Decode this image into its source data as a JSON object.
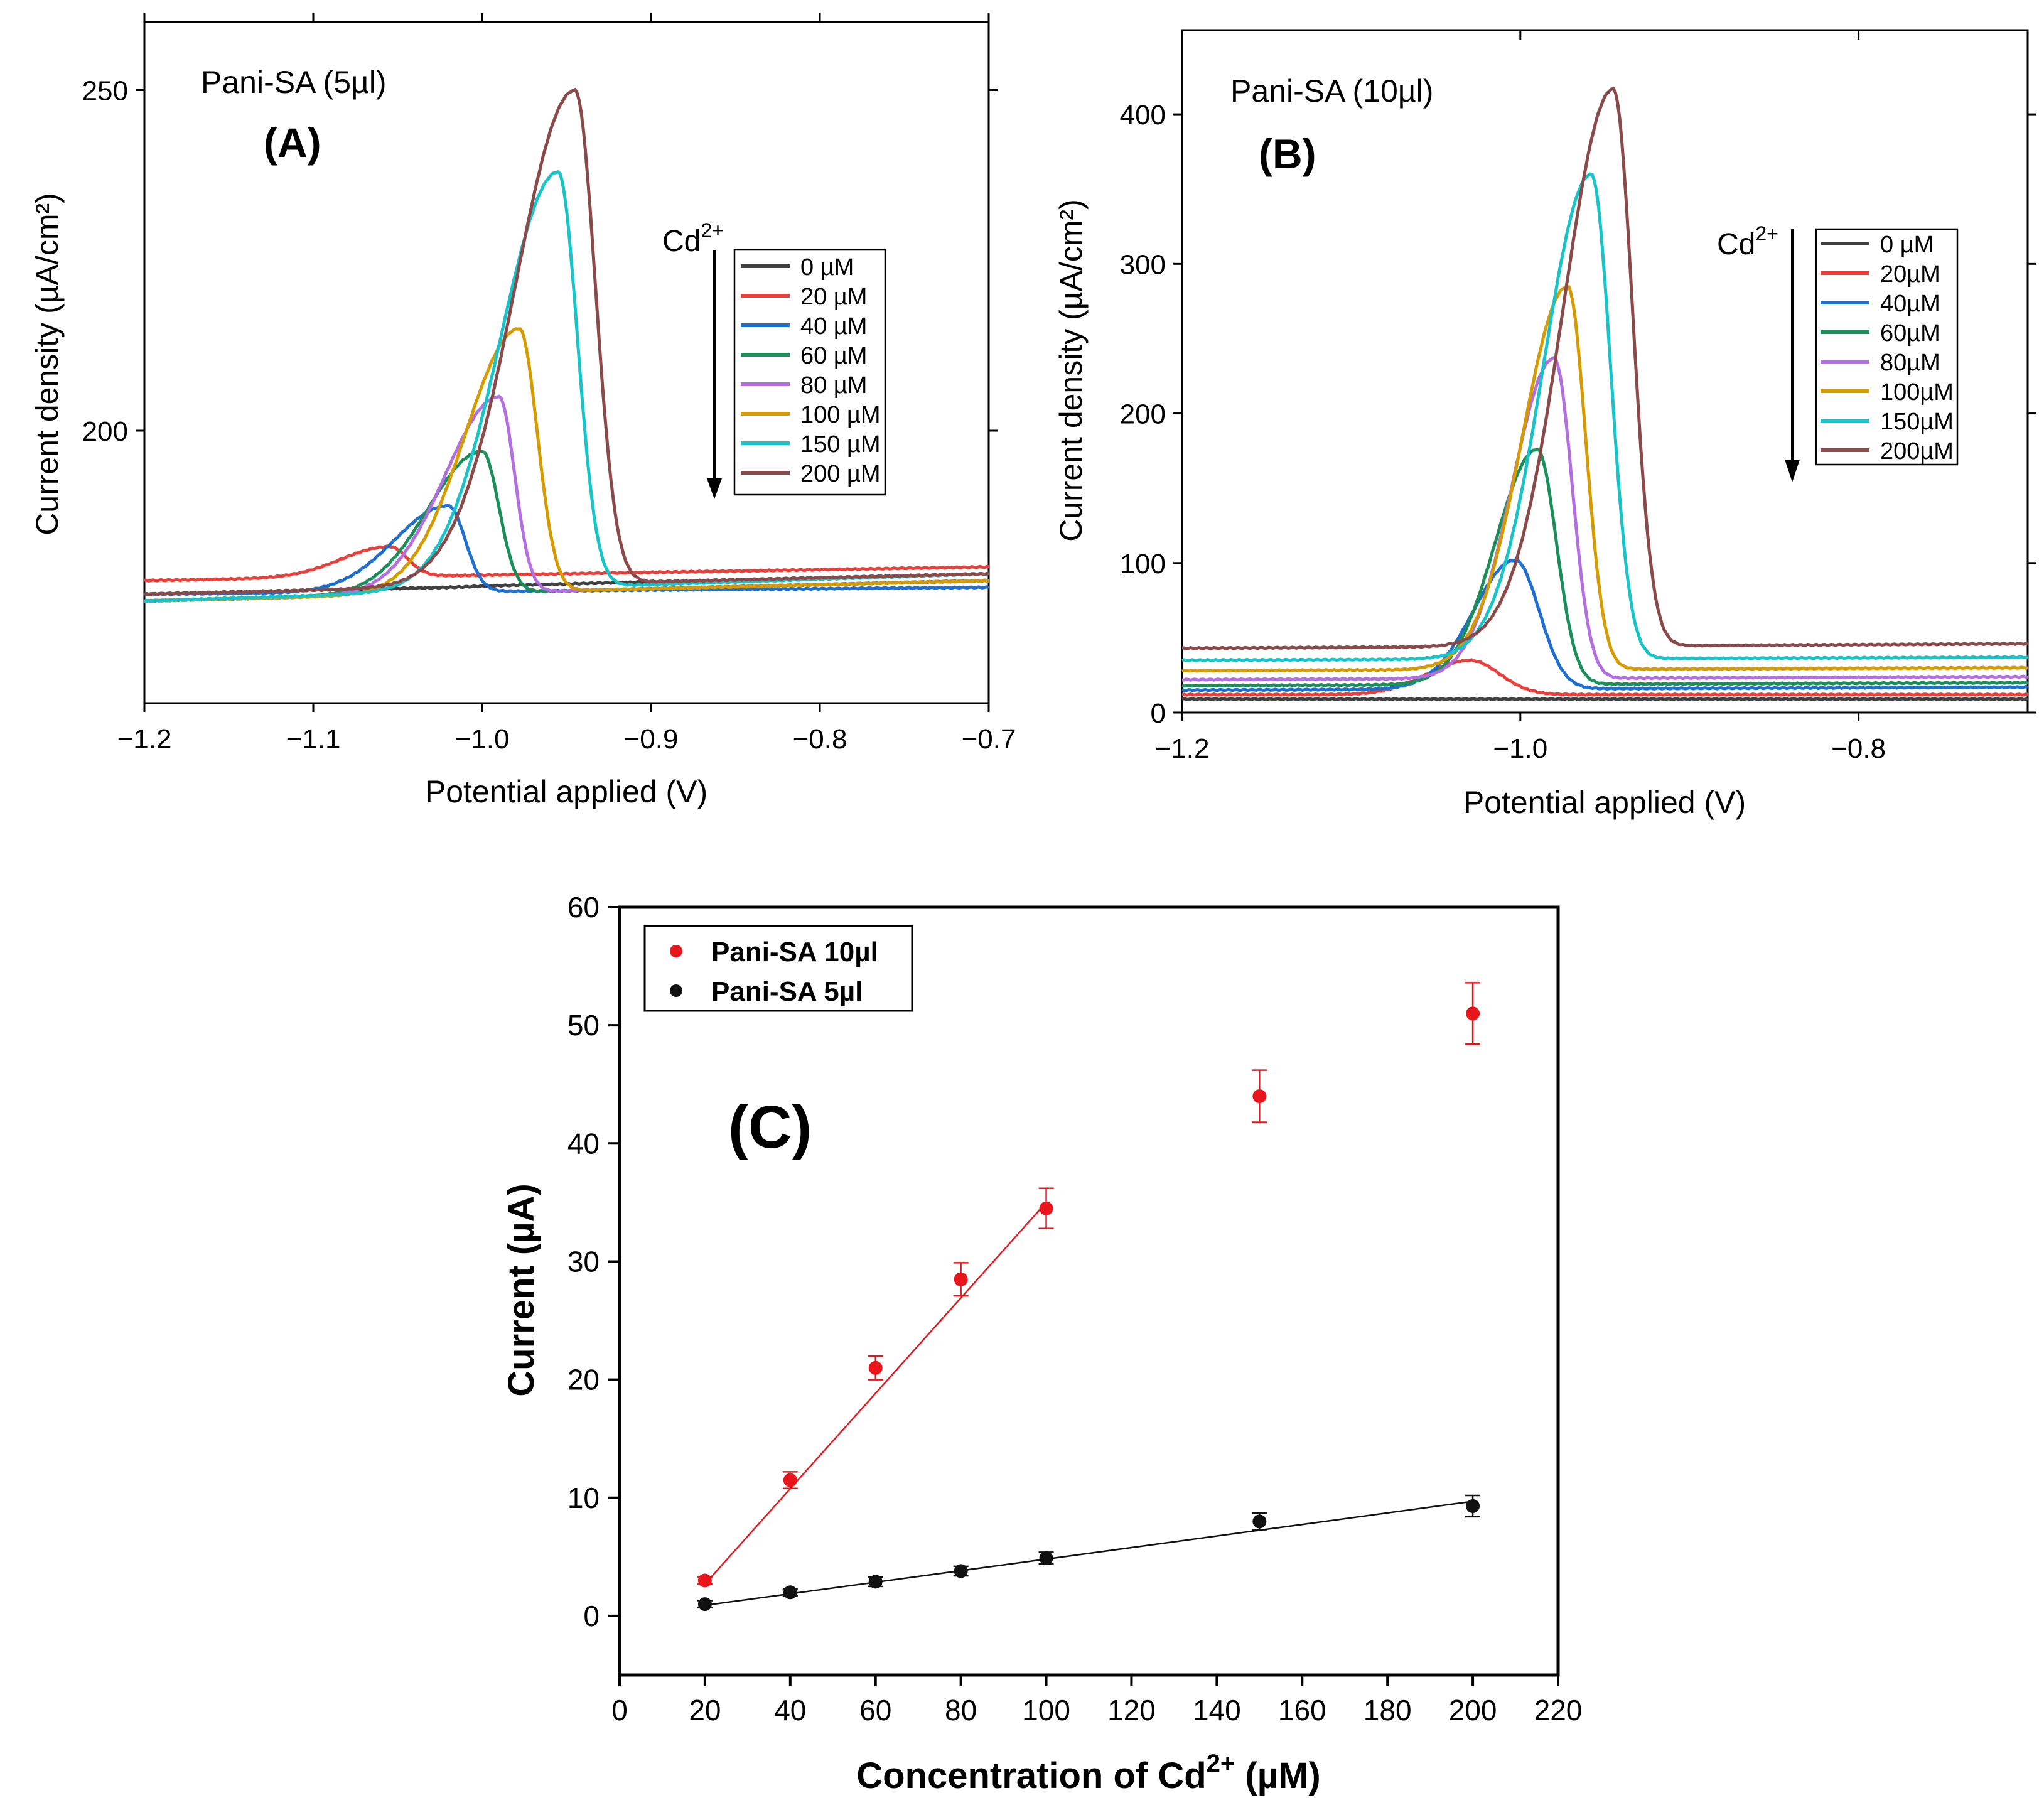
{
  "chart_data": [
    {
      "id": "A",
      "type": "line",
      "panel_label": "(A)",
      "title": "Pani-SA (5µl)",
      "xlabel": "Potential applied (V)",
      "ylabel": "Current density (µA/cm²)",
      "xlim": [
        -1.2,
        -0.7
      ],
      "ylim": [
        160,
        260
      ],
      "xticks": [
        -1.2,
        -1.1,
        -1.0,
        -0.9,
        -0.8,
        -0.7
      ],
      "xtick_labels": [
        "−1.2",
        "−1.1",
        "−1.0",
        "−0.9",
        "−0.8",
        "−0.7"
      ],
      "yticks": [
        200,
        250
      ],
      "ytick_labels": [
        "200",
        "250"
      ],
      "arrow_label": "Cd",
      "arrow_label_sup": "2+",
      "legend_position": "center-right",
      "series": [
        {
          "name": "0 µM",
          "color": "#404040",
          "peak_x": -1.02,
          "peak_y": 177,
          "base_left": 176,
          "base_right": 179,
          "w_left": 0.05,
          "w_right": 0.02
        },
        {
          "name": "20 µM",
          "color": "#e8413c",
          "peak_x": -1.055,
          "peak_y": 183,
          "base_left": 178,
          "base_right": 180,
          "w_left": 0.04,
          "w_right": 0.015
        },
        {
          "name": "40 µM",
          "color": "#1e6fd0",
          "peak_x": -1.02,
          "peak_y": 189,
          "base_left": 176,
          "base_right": 177,
          "w_left": 0.045,
          "w_right": 0.014
        },
        {
          "name": "60 µM",
          "color": "#1b8f5a",
          "peak_x": -1.0,
          "peak_y": 197,
          "base_left": 175,
          "base_right": 178,
          "w_left": 0.045,
          "w_right": 0.014
        },
        {
          "name": "80 µM",
          "color": "#b36ee0",
          "peak_x": -0.99,
          "peak_y": 205,
          "base_left": 175,
          "base_right": 178,
          "w_left": 0.045,
          "w_right": 0.013
        },
        {
          "name": "100 µM",
          "color": "#d69b00",
          "peak_x": -0.978,
          "peak_y": 215,
          "base_left": 175,
          "base_right": 178,
          "w_left": 0.045,
          "w_right": 0.015
        },
        {
          "name": "150 µM",
          "color": "#17c4c9",
          "peak_x": -0.955,
          "peak_y": 238,
          "base_left": 175,
          "base_right": 179,
          "w_left": 0.048,
          "w_right": 0.016
        },
        {
          "name": "200 µM",
          "color": "#8b4a4a",
          "peak_x": -0.945,
          "peak_y": 250,
          "base_left": 176,
          "base_right": 179,
          "w_left": 0.05,
          "w_right": 0.017
        }
      ]
    },
    {
      "id": "B",
      "type": "line",
      "panel_label": "(B)",
      "title": "Pani-SA (10µl)",
      "xlabel": "Potential applied (V)",
      "ylabel": "Current density (µA/cm²)",
      "xlim": [
        -1.2,
        -0.7
      ],
      "ylim": [
        0,
        450
      ],
      "xticks": [
        -1.2,
        -1.0,
        -0.8
      ],
      "xtick_labels": [
        "−1.2",
        "−1.0",
        "−0.8"
      ],
      "yticks": [
        0,
        100,
        200,
        300,
        400
      ],
      "ytick_labels": [
        "0",
        "100",
        "200",
        "300",
        "400"
      ],
      "arrow_label": "Cd",
      "arrow_label_sup": "2+",
      "legend_position": "center-right",
      "series": [
        {
          "name": "0 µM",
          "color": "#404040",
          "peak_x": -1.0,
          "peak_y": 9,
          "base_left": 9,
          "base_right": 9,
          "w_left": 0.05,
          "w_right": 0.02
        },
        {
          "name": "20µM",
          "color": "#e8413c",
          "peak_x": -1.03,
          "peak_y": 35,
          "base_left": 12,
          "base_right": 12,
          "w_left": 0.035,
          "w_right": 0.025
        },
        {
          "name": "40µM",
          "color": "#1e6fd0",
          "peak_x": -1.003,
          "peak_y": 102,
          "base_left": 15,
          "base_right": 17,
          "w_left": 0.035,
          "w_right": 0.02
        },
        {
          "name": "60µM",
          "color": "#1b8f5a",
          "peak_x": -0.99,
          "peak_y": 176,
          "base_left": 18,
          "base_right": 20,
          "w_left": 0.035,
          "w_right": 0.016
        },
        {
          "name": "80µM",
          "color": "#b36ee0",
          "peak_x": -0.98,
          "peak_y": 237,
          "base_left": 22,
          "base_right": 24,
          "w_left": 0.035,
          "w_right": 0.015
        },
        {
          "name": "100µM",
          "color": "#d69b00",
          "peak_x": -0.972,
          "peak_y": 285,
          "base_left": 28,
          "base_right": 30,
          "w_left": 0.038,
          "w_right": 0.015
        },
        {
          "name": "150µM",
          "color": "#17c4c9",
          "peak_x": -0.958,
          "peak_y": 360,
          "base_left": 35,
          "base_right": 37,
          "w_left": 0.04,
          "w_right": 0.016
        },
        {
          "name": "200µM",
          "color": "#8b4a4a",
          "peak_x": -0.945,
          "peak_y": 417,
          "base_left": 43,
          "base_right": 46,
          "w_left": 0.042,
          "w_right": 0.016
        }
      ]
    },
    {
      "id": "C",
      "type": "scatter",
      "panel_label": "(C)",
      "title": "",
      "xlabel": "Concentration of Cd",
      "xlabel_sup": "2+",
      "xlabel_suffix": " (µM)",
      "ylabel": "Current (µA)",
      "xlim": [
        0,
        220
      ],
      "ylim": [
        -5,
        60
      ],
      "xticks": [
        0,
        20,
        40,
        60,
        80,
        100,
        120,
        140,
        160,
        180,
        200,
        220
      ],
      "yticks": [
        0,
        10,
        20,
        30,
        40,
        50,
        60
      ],
      "legend_position": "top-left",
      "series": [
        {
          "name": "Pani-SA 10µl",
          "color": "#e8161b",
          "x": [
            20,
            40,
            60,
            80,
            100,
            150,
            200
          ],
          "y": [
            3,
            11.5,
            21,
            28.5,
            34.5,
            44,
            51
          ],
          "err": [
            0.3,
            0.7,
            1.0,
            1.4,
            1.7,
            2.2,
            2.6
          ],
          "fit": {
            "x": [
              20,
              100
            ],
            "y": [
              2.7,
              35
            ]
          }
        },
        {
          "name": "Pani-SA 5µl",
          "color": "#111111",
          "x": [
            20,
            40,
            60,
            80,
            100,
            150,
            200
          ],
          "y": [
            1,
            2,
            2.9,
            3.8,
            4.9,
            8,
            9.3
          ],
          "err": [
            0.3,
            0.3,
            0.4,
            0.4,
            0.5,
            0.7,
            0.9
          ],
          "fit": {
            "x": [
              20,
              200
            ],
            "y": [
              0.9,
              9.7
            ]
          }
        }
      ]
    }
  ]
}
